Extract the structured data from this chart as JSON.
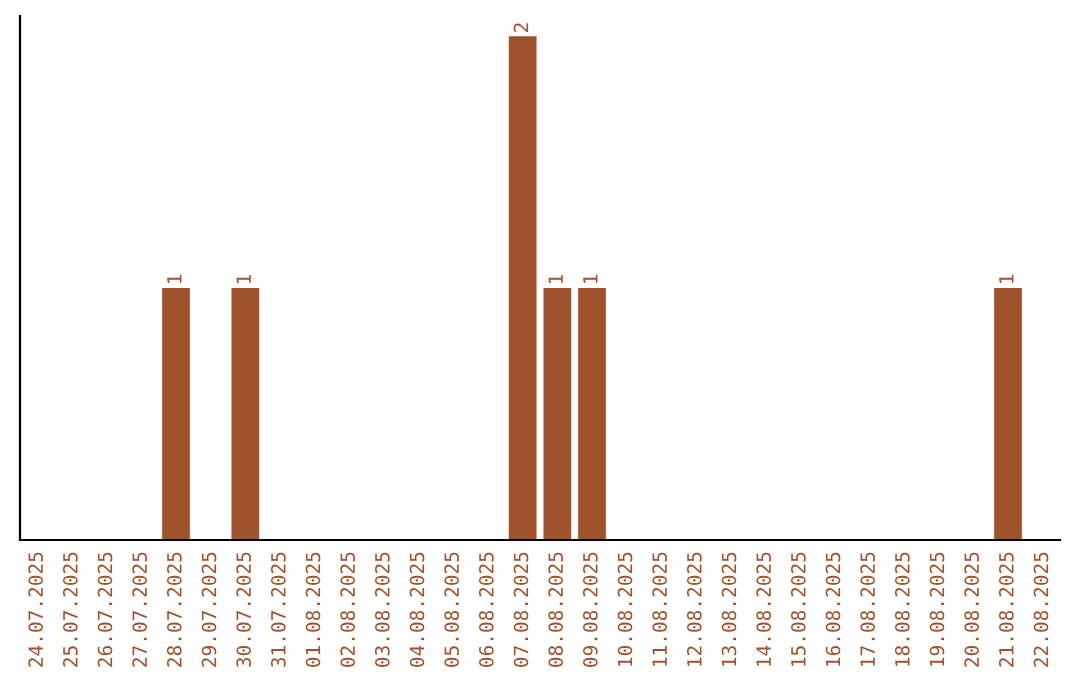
{
  "chart_data": {
    "type": "bar",
    "categories": [
      "24.07.2025",
      "25.07.2025",
      "26.07.2025",
      "27.07.2025",
      "28.07.2025",
      "29.07.2025",
      "30.07.2025",
      "31.07.2025",
      "01.08.2025",
      "02.08.2025",
      "03.08.2025",
      "04.08.2025",
      "05.08.2025",
      "06.08.2025",
      "07.08.2025",
      "08.08.2025",
      "09.08.2025",
      "10.08.2025",
      "11.08.2025",
      "12.08.2025",
      "13.08.2025",
      "14.08.2025",
      "15.08.2025",
      "16.08.2025",
      "17.08.2025",
      "18.08.2025",
      "19.08.2025",
      "20.08.2025",
      "21.08.2025",
      "22.08.2025"
    ],
    "values": [
      0,
      0,
      0,
      0,
      1,
      0,
      1,
      0,
      0,
      0,
      0,
      0,
      0,
      0,
      2,
      1,
      1,
      0,
      0,
      0,
      0,
      0,
      0,
      0,
      0,
      0,
      0,
      0,
      1,
      0
    ],
    "value_labels": [
      null,
      null,
      null,
      null,
      "1",
      null,
      "1",
      null,
      null,
      null,
      null,
      null,
      null,
      null,
      "2",
      "1",
      "1",
      null,
      null,
      null,
      null,
      null,
      null,
      null,
      null,
      null,
      null,
      null,
      "1",
      null
    ],
    "color": "#a0522d",
    "grid": false,
    "legend": false
  }
}
